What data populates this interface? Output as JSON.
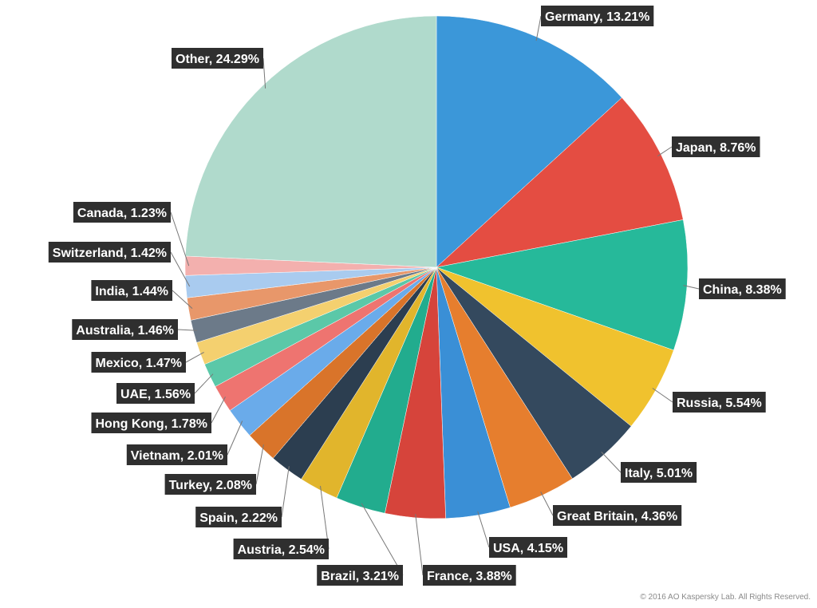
{
  "chart_data": {
    "type": "pie",
    "title": "",
    "start_angle_deg": 0,
    "direction": "clockwise",
    "slices": [
      {
        "name": "Germany",
        "value": 13.21,
        "label": "Germany, 13.21%",
        "color": "#3b97d9"
      },
      {
        "name": "Japan",
        "value": 8.76,
        "label": "Japan, 8.76%",
        "color": "#e44d42"
      },
      {
        "name": "China",
        "value": 8.38,
        "label": "China, 8.38%",
        "color": "#26b99a"
      },
      {
        "name": "Russia",
        "value": 5.54,
        "label": "Russia, 5.54%",
        "color": "#f0c22e"
      },
      {
        "name": "Italy",
        "value": 5.01,
        "label": "Italy, 5.01%",
        "color": "#34495e"
      },
      {
        "name": "Great Britain",
        "value": 4.36,
        "label": "Great Britain, 4.36%",
        "color": "#e67e2e"
      },
      {
        "name": "USA",
        "value": 4.15,
        "label": "USA, 4.15%",
        "color": "#3a8fd6"
      },
      {
        "name": "France",
        "value": 3.88,
        "label": "France, 3.88%",
        "color": "#d6443b"
      },
      {
        "name": "Brazil",
        "value": 3.21,
        "label": "Brazil, 3.21%",
        "color": "#22ac8e"
      },
      {
        "name": "Austria",
        "value": 2.54,
        "label": "Austria, 2.54%",
        "color": "#e1b52c"
      },
      {
        "name": "Spain",
        "value": 2.22,
        "label": "Spain, 2.22%",
        "color": "#2c3e50"
      },
      {
        "name": "Turkey",
        "value": 2.08,
        "label": "Turkey, 2.08%",
        "color": "#d9742a"
      },
      {
        "name": "Vietnam",
        "value": 2.01,
        "label": "Vietnam, 2.01%",
        "color": "#6aabea"
      },
      {
        "name": "Hong Kong",
        "value": 1.78,
        "label": "Hong Kong, 1.78%",
        "color": "#ee7470"
      },
      {
        "name": "UAE",
        "value": 1.56,
        "label": "UAE, 1.56%",
        "color": "#5bc8a8"
      },
      {
        "name": "Mexico",
        "value": 1.47,
        "label": "Mexico, 1.47%",
        "color": "#f4d06f"
      },
      {
        "name": "Australia",
        "value": 1.46,
        "label": "Australia, 1.46%",
        "color": "#6c7a89"
      },
      {
        "name": "India",
        "value": 1.44,
        "label": "India, 1.44%",
        "color": "#e8976a"
      },
      {
        "name": "Switzerland",
        "value": 1.42,
        "label": "Switzerland, 1.42%",
        "color": "#a9cbef"
      },
      {
        "name": "Canada",
        "value": 1.23,
        "label": "Canada, 1.23%",
        "color": "#f3b0ae"
      },
      {
        "name": "Other",
        "value": 24.29,
        "label": "Other, 24.29%",
        "color": "#b0dacc"
      }
    ]
  },
  "copyright": "© 2016 AO Kaspersky Lab. All Rights Reserved."
}
